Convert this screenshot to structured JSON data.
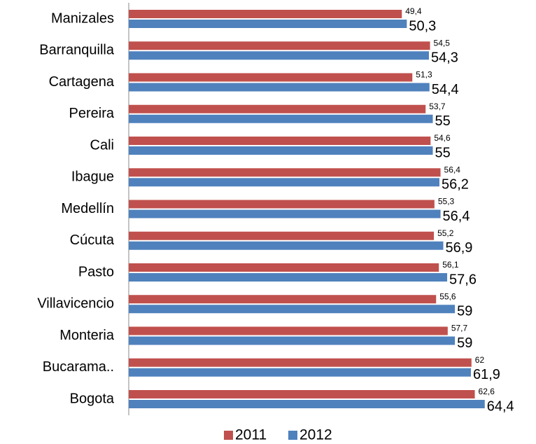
{
  "chart_data": {
    "type": "hbar",
    "categories": [
      "Manizales",
      "Barranquilla",
      "Cartagena",
      "Pereira",
      "Cali",
      "Ibague",
      "Medellín",
      "Cúcuta",
      "Pasto",
      "Villavicencio",
      "Monteria",
      "Bucarama..",
      "Bogota"
    ],
    "series": [
      {
        "name": "2011",
        "color": "#c0504d",
        "values": [
          49.4,
          54.5,
          51.3,
          53.7,
          54.6,
          56.4,
          55.3,
          55.2,
          56.1,
          55.6,
          57.7,
          62,
          62.6
        ],
        "value_labels": [
          "49,4",
          "54,5",
          "51,3",
          "53,7",
          "54,6",
          "56,4",
          "55,3",
          "55,2",
          "56,1",
          "55,6",
          "57,7",
          "62",
          "62,6"
        ]
      },
      {
        "name": "2012",
        "color": "#4f81bd",
        "values": [
          50.3,
          54.3,
          54.4,
          55,
          55,
          56.2,
          56.4,
          56.9,
          57.6,
          59,
          59,
          61.9,
          64.4
        ],
        "value_labels": [
          "50,3",
          "54,3",
          "54,4",
          "55",
          "55",
          "56,2",
          "56,4",
          "56,9",
          "57,6",
          "59",
          "59",
          "61,9",
          "64,4"
        ]
      }
    ],
    "xlim": [
      0,
      70
    ],
    "legend": "bottom"
  }
}
